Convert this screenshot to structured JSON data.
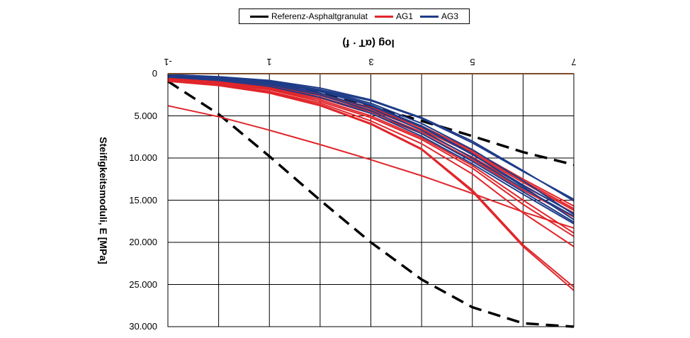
{
  "chart_data": {
    "type": "line",
    "xlabel": "log (αT · f)",
    "ylabel": "Steifigkeitsmoduli, E [MPa]",
    "x_ticks": [
      "-1",
      "1",
      "3",
      "5",
      "7"
    ],
    "x_tick_values": [
      -1,
      1,
      3,
      5,
      7
    ],
    "y_ticks": [
      "0",
      "5.000",
      "10.000",
      "15.000",
      "20.000",
      "25.000",
      "30.000"
    ],
    "y_tick_values": [
      0,
      5000,
      10000,
      15000,
      20000,
      25000,
      30000
    ],
    "xlim": [
      -1,
      7
    ],
    "ylim": [
      0,
      30000
    ],
    "grid": true,
    "orientation_note": "",
    "legend_position": "top-center",
    "legend": [
      {
        "name": "Referenz-Asphaltgranulat",
        "color": "#000000",
        "dash": "dashed"
      },
      {
        "name": "AG1",
        "color": "#e0262b",
        "dash": "solid"
      },
      {
        "name": "AG3",
        "color": "#1f3c88",
        "dash": "solid"
      }
    ],
    "series": [
      {
        "group": "Referenz-Asphaltgranulat",
        "color": "#000000",
        "dash": "dashed",
        "x": [
          -1,
          0,
          1,
          2,
          3,
          4,
          5,
          6,
          7
        ],
        "y": [
          900,
          4800,
          9800,
          15000,
          20000,
          24400,
          27700,
          29600,
          30000
        ]
      },
      {
        "group": "Referenz-Asphaltgranulat",
        "color": "#000000",
        "dash": "dashed",
        "x": [
          -1,
          0,
          1,
          2,
          3,
          4,
          5,
          6,
          7
        ],
        "y": [
          100,
          500,
          1200,
          2300,
          3900,
          5600,
          7400,
          9300,
          10800
        ]
      },
      {
        "group": "AG1",
        "color": "#e0262b",
        "dash": "solid",
        "x": [
          -1,
          0,
          1,
          2,
          3,
          4,
          5,
          6,
          7
        ],
        "y": [
          3800,
          5100,
          6700,
          8400,
          10200,
          12100,
          14200,
          16400,
          18300
        ]
      },
      {
        "group": "AG1",
        "color": "#e0262b",
        "dash": "solid",
        "x": [
          -1,
          0,
          1,
          2,
          3,
          4,
          5,
          6,
          7
        ],
        "y": [
          900,
          1400,
          2300,
          3800,
          6000,
          9000,
          14000,
          20500,
          25700
        ]
      },
      {
        "group": "AG1",
        "color": "#e0262b",
        "dash": "solid",
        "x": [
          -1,
          0,
          1,
          2,
          3,
          4,
          5,
          6,
          7
        ],
        "y": [
          800,
          1300,
          2200,
          3700,
          5900,
          8900,
          13800,
          20300,
          25300
        ]
      },
      {
        "group": "AG1",
        "color": "#e0262b",
        "dash": "solid",
        "x": [
          -1,
          0,
          1,
          2,
          3,
          4,
          5,
          6,
          7
        ],
        "y": [
          700,
          1200,
          2100,
          3500,
          5600,
          8300,
          11900,
          16500,
          20500
        ]
      },
      {
        "group": "AG1",
        "color": "#e0262b",
        "dash": "solid",
        "x": [
          -1,
          0,
          1,
          2,
          3,
          4,
          5,
          6,
          7
        ],
        "y": [
          600,
          1100,
          1900,
          3300,
          5200,
          7800,
          11200,
          15500,
          19300
        ]
      },
      {
        "group": "AG1",
        "color": "#e0262b",
        "dash": "solid",
        "x": [
          -1,
          0,
          1,
          2,
          3,
          4,
          5,
          6,
          7
        ],
        "y": [
          500,
          1000,
          1800,
          3100,
          5000,
          7600,
          10900,
          15000,
          18900
        ]
      },
      {
        "group": "AG1",
        "color": "#e0262b",
        "dash": "solid",
        "x": [
          -1,
          0,
          1,
          2,
          3,
          4,
          5,
          6,
          7
        ],
        "y": [
          500,
          900,
          1700,
          2900,
          4700,
          7100,
          10200,
          13800,
          17000
        ]
      },
      {
        "group": "AG1",
        "color": "#e0262b",
        "dash": "solid",
        "x": [
          -1,
          0,
          1,
          2,
          3,
          4,
          5,
          6,
          7
        ],
        "y": [
          400,
          850,
          1600,
          2800,
          4500,
          6900,
          9900,
          13300,
          16500
        ]
      },
      {
        "group": "AG1",
        "color": "#e0262b",
        "dash": "solid",
        "x": [
          -1,
          0,
          1,
          2,
          3,
          4,
          5,
          6,
          7
        ],
        "y": [
          400,
          800,
          1500,
          2600,
          4300,
          6600,
          9500,
          12900,
          16200
        ]
      },
      {
        "group": "AG1",
        "color": "#e0262b",
        "dash": "solid",
        "x": [
          -1,
          0,
          1,
          2,
          3,
          4,
          5,
          6,
          7
        ],
        "y": [
          350,
          750,
          1400,
          2500,
          4100,
          6400,
          9300,
          12700,
          16000
        ]
      },
      {
        "group": "AG1",
        "color": "#e0262b",
        "dash": "solid",
        "x": [
          -1,
          0,
          1,
          2,
          3,
          4,
          5,
          6,
          7
        ],
        "y": [
          300,
          700,
          1300,
          2400,
          4000,
          6200,
          9100,
          12500,
          15700
        ]
      },
      {
        "group": "AG3",
        "color": "#1f3c88",
        "dash": "solid",
        "x": [
          -1,
          0,
          1,
          2,
          3,
          4,
          5,
          6,
          7
        ],
        "y": [
          100,
          350,
          800,
          1700,
          3100,
          5200,
          8000,
          11500,
          15100
        ]
      },
      {
        "group": "AG3",
        "color": "#1f3c88",
        "dash": "solid",
        "x": [
          -1,
          0,
          1,
          2,
          3,
          4,
          5,
          6,
          7
        ],
        "y": [
          150,
          400,
          900,
          1900,
          3500,
          5900,
          9000,
          12700,
          16700
        ]
      },
      {
        "group": "AG3",
        "color": "#1f3c88",
        "dash": "solid",
        "x": [
          -1,
          0,
          1,
          2,
          3,
          4,
          5,
          6,
          7
        ],
        "y": [
          200,
          450,
          1000,
          2000,
          3700,
          6200,
          9500,
          13400,
          17300
        ]
      },
      {
        "group": "AG3",
        "color": "#1f3c88",
        "dash": "solid",
        "x": [
          -1,
          0,
          1,
          2,
          3,
          4,
          5,
          6,
          7
        ],
        "y": [
          250,
          550,
          1150,
          2300,
          4100,
          6700,
          10000,
          13600,
          16900
        ]
      },
      {
        "group": "AG3",
        "color": "#1f3c88",
        "dash": "solid",
        "x": [
          -1,
          0,
          1,
          2,
          3,
          4,
          5,
          6,
          7
        ],
        "y": [
          300,
          650,
          1300,
          2500,
          4400,
          7100,
          10400,
          14000,
          17600
        ]
      },
      {
        "group": "AG3",
        "color": "#1f3c88",
        "dash": "solid",
        "x": [
          -1,
          0,
          1,
          2,
          3,
          4,
          5,
          6,
          7
        ],
        "y": [
          400,
          800,
          1500,
          2800,
          4700,
          7400,
          10700,
          14300,
          17800
        ]
      },
      {
        "group": "AG3",
        "color": "#1f3c88",
        "dash": "solid",
        "x": [
          -1,
          0,
          1,
          2,
          3,
          4,
          5,
          6,
          7
        ],
        "y": [
          300,
          600,
          1100,
          1900,
          3200,
          5300,
          8200,
          11600,
          14900
        ]
      },
      {
        "group": "AG3",
        "color": "#1f3c88",
        "dash": "solid",
        "x": [
          -1,
          0,
          1,
          2,
          3,
          4,
          5,
          6,
          7
        ],
        "y": [
          200,
          500,
          1050,
          2100,
          3800,
          6300,
          9600,
          13200,
          16600
        ]
      }
    ]
  }
}
